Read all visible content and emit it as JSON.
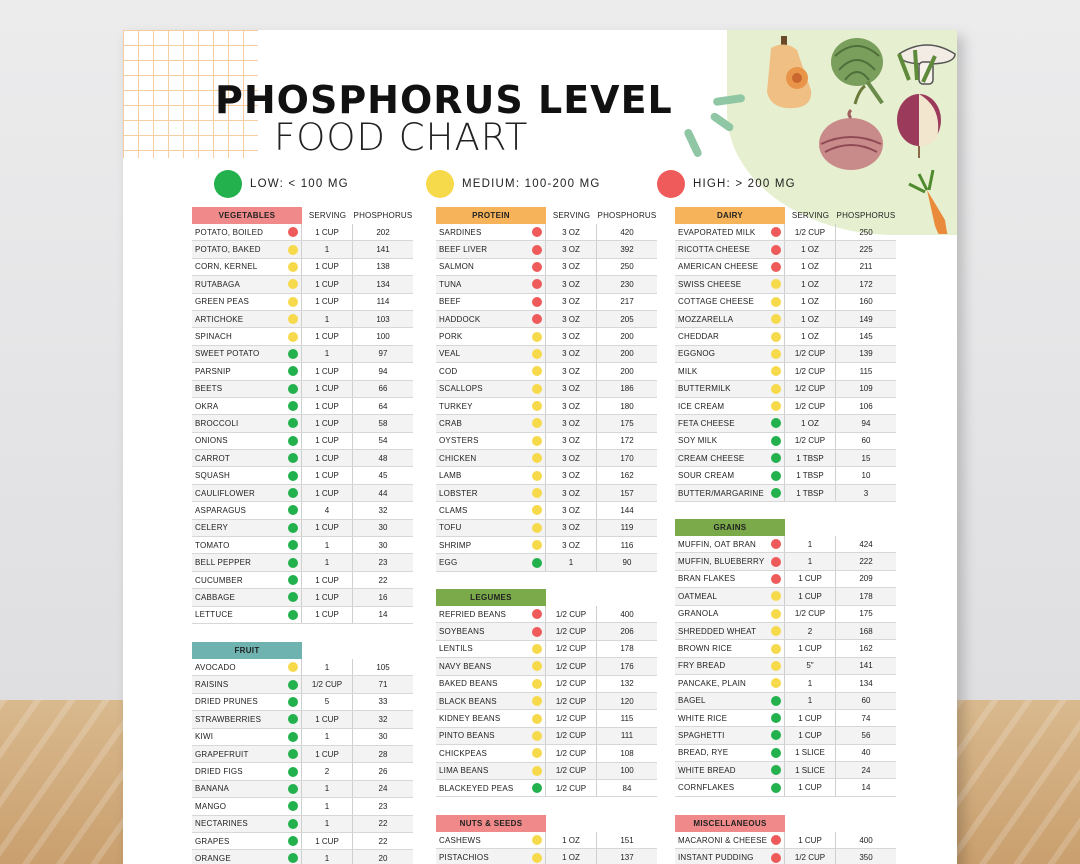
{
  "title": {
    "line1": "PHOSPHORUS LEVEL",
    "line2": "FOOD CHART"
  },
  "legend": [
    {
      "label": "LOW: < 100 MG",
      "color": "#22b14c"
    },
    {
      "label": "MEDIUM: 100-200 MG",
      "color": "#f7d94c"
    },
    {
      "label": "HIGH: > 200 MG",
      "color": "#ef5b5b"
    }
  ],
  "level_colors": {
    "low": "#22b14c",
    "medium": "#f7d94c",
    "high": "#ef5b5b"
  },
  "column_labels": {
    "serving": "SERVING",
    "phosphorus": "PHOSPHORUS"
  },
  "tables": {
    "vegetables": {
      "category": "VEGETABLES",
      "color": "#f08a8a",
      "rows": [
        {
          "food": "POTATO, BOILED",
          "level": "high",
          "serving": "1 CUP",
          "phosphorus": "202"
        },
        {
          "food": "POTATO, BAKED",
          "level": "medium",
          "serving": "1",
          "phosphorus": "141"
        },
        {
          "food": "CORN, KERNEL",
          "level": "medium",
          "serving": "1 CUP",
          "phosphorus": "138"
        },
        {
          "food": "RUTABAGA",
          "level": "medium",
          "serving": "1 CUP",
          "phosphorus": "134"
        },
        {
          "food": "GREEN PEAS",
          "level": "medium",
          "serving": "1 CUP",
          "phosphorus": "114"
        },
        {
          "food": "ARTICHOKE",
          "level": "medium",
          "serving": "1",
          "phosphorus": "103"
        },
        {
          "food": "SPINACH",
          "level": "medium",
          "serving": "1 CUP",
          "phosphorus": "100"
        },
        {
          "food": "SWEET POTATO",
          "level": "low",
          "serving": "1",
          "phosphorus": "97"
        },
        {
          "food": "PARSNIP",
          "level": "low",
          "serving": "1 CUP",
          "phosphorus": "94"
        },
        {
          "food": "BEETS",
          "level": "low",
          "serving": "1 CUP",
          "phosphorus": "66"
        },
        {
          "food": "OKRA",
          "level": "low",
          "serving": "1 CUP",
          "phosphorus": "64"
        },
        {
          "food": "BROCCOLI",
          "level": "low",
          "serving": "1 CUP",
          "phosphorus": "58"
        },
        {
          "food": "ONIONS",
          "level": "low",
          "serving": "1 CUP",
          "phosphorus": "54"
        },
        {
          "food": "CARROT",
          "level": "low",
          "serving": "1 CUP",
          "phosphorus": "48"
        },
        {
          "food": "SQUASH",
          "level": "low",
          "serving": "1 CUP",
          "phosphorus": "45"
        },
        {
          "food": "CAULIFLOWER",
          "level": "low",
          "serving": "1 CUP",
          "phosphorus": "44"
        },
        {
          "food": "ASPARAGUS",
          "level": "low",
          "serving": "4",
          "phosphorus": "32"
        },
        {
          "food": "CELERY",
          "level": "low",
          "serving": "1 CUP",
          "phosphorus": "30"
        },
        {
          "food": "TOMATO",
          "level": "low",
          "serving": "1",
          "phosphorus": "30"
        },
        {
          "food": "BELL PEPPER",
          "level": "low",
          "serving": "1",
          "phosphorus": "23"
        },
        {
          "food": "CUCUMBER",
          "level": "low",
          "serving": "1 CUP",
          "phosphorus": "22"
        },
        {
          "food": "CABBAGE",
          "level": "low",
          "serving": "1 CUP",
          "phosphorus": "16"
        },
        {
          "food": "LETTUCE",
          "level": "low",
          "serving": "1 CUP",
          "phosphorus": "14"
        }
      ]
    },
    "fruit": {
      "category": "FRUIT",
      "color": "#6fb3b0",
      "rows": [
        {
          "food": "AVOCADO",
          "level": "medium",
          "serving": "1",
          "phosphorus": "105"
        },
        {
          "food": "RAISINS",
          "level": "low",
          "serving": "1/2 CUP",
          "phosphorus": "71"
        },
        {
          "food": "DRIED PRUNES",
          "level": "low",
          "serving": "5",
          "phosphorus": "33"
        },
        {
          "food": "STRAWBERRIES",
          "level": "low",
          "serving": "1 CUP",
          "phosphorus": "32"
        },
        {
          "food": "KIWI",
          "level": "low",
          "serving": "1",
          "phosphorus": "30"
        },
        {
          "food": "GRAPEFRUIT",
          "level": "low",
          "serving": "1 CUP",
          "phosphorus": "28"
        },
        {
          "food": "DRIED FIGS",
          "level": "low",
          "serving": "2",
          "phosphorus": "26"
        },
        {
          "food": "BANANA",
          "level": "low",
          "serving": "1",
          "phosphorus": "24"
        },
        {
          "food": "MANGO",
          "level": "low",
          "serving": "1",
          "phosphorus": "23"
        },
        {
          "food": "NECTARINES",
          "level": "low",
          "serving": "1",
          "phosphorus": "22"
        },
        {
          "food": "GRAPES",
          "level": "low",
          "serving": "1 CUP",
          "phosphorus": "22"
        },
        {
          "food": "ORANGE",
          "level": "low",
          "serving": "1",
          "phosphorus": "20"
        }
      ]
    },
    "protein": {
      "category": "PROTEIN",
      "color": "#f6b35a",
      "rows": [
        {
          "food": "SARDINES",
          "level": "high",
          "serving": "3 OZ",
          "phosphorus": "420"
        },
        {
          "food": "BEEF LIVER",
          "level": "high",
          "serving": "3 OZ",
          "phosphorus": "392"
        },
        {
          "food": "SALMON",
          "level": "high",
          "serving": "3 OZ",
          "phosphorus": "250"
        },
        {
          "food": "TUNA",
          "level": "high",
          "serving": "3 OZ",
          "phosphorus": "230"
        },
        {
          "food": "BEEF",
          "level": "high",
          "serving": "3 OZ",
          "phosphorus": "217"
        },
        {
          "food": "HADDOCK",
          "level": "high",
          "serving": "3 OZ",
          "phosphorus": "205"
        },
        {
          "food": "PORK",
          "level": "medium",
          "serving": "3 OZ",
          "phosphorus": "200"
        },
        {
          "food": "VEAL",
          "level": "medium",
          "serving": "3 OZ",
          "phosphorus": "200"
        },
        {
          "food": "COD",
          "level": "medium",
          "serving": "3 OZ",
          "phosphorus": "200"
        },
        {
          "food": "SCALLOPS",
          "level": "medium",
          "serving": "3 OZ",
          "phosphorus": "186"
        },
        {
          "food": "TURKEY",
          "level": "medium",
          "serving": "3 OZ",
          "phosphorus": "180"
        },
        {
          "food": "CRAB",
          "level": "medium",
          "serving": "3 OZ",
          "phosphorus": "175"
        },
        {
          "food": "OYSTERS",
          "level": "medium",
          "serving": "3 OZ",
          "phosphorus": "172"
        },
        {
          "food": "CHICKEN",
          "level": "medium",
          "serving": "3 OZ",
          "phosphorus": "170"
        },
        {
          "food": "LAMB",
          "level": "medium",
          "serving": "3 OZ",
          "phosphorus": "162"
        },
        {
          "food": "LOBSTER",
          "level": "medium",
          "serving": "3 OZ",
          "phosphorus": "157"
        },
        {
          "food": "CLAMS",
          "level": "medium",
          "serving": "3 OZ",
          "phosphorus": "144"
        },
        {
          "food": "TOFU",
          "level": "medium",
          "serving": "3 OZ",
          "phosphorus": "119"
        },
        {
          "food": "SHRIMP",
          "level": "medium",
          "serving": "3 OZ",
          "phosphorus": "116"
        },
        {
          "food": "EGG",
          "level": "low",
          "serving": "1",
          "phosphorus": "90"
        }
      ]
    },
    "legumes": {
      "category": "LEGUMES",
      "color": "#7aaa4a",
      "rows": [
        {
          "food": "REFRIED BEANS",
          "level": "high",
          "serving": "1/2 CUP",
          "phosphorus": "400"
        },
        {
          "food": "SOYBEANS",
          "level": "high",
          "serving": "1/2 CUP",
          "phosphorus": "206"
        },
        {
          "food": "LENTILS",
          "level": "medium",
          "serving": "1/2 CUP",
          "phosphorus": "178"
        },
        {
          "food": "NAVY BEANS",
          "level": "medium",
          "serving": "1/2 CUP",
          "phosphorus": "176"
        },
        {
          "food": "BAKED BEANS",
          "level": "medium",
          "serving": "1/2 CUP",
          "phosphorus": "132"
        },
        {
          "food": "BLACK BEANS",
          "level": "medium",
          "serving": "1/2 CUP",
          "phosphorus": "120"
        },
        {
          "food": "KIDNEY BEANS",
          "level": "medium",
          "serving": "1/2 CUP",
          "phosphorus": "115"
        },
        {
          "food": "PINTO BEANS",
          "level": "medium",
          "serving": "1/2 CUP",
          "phosphorus": "111"
        },
        {
          "food": "CHICKPEAS",
          "level": "medium",
          "serving": "1/2 CUP",
          "phosphorus": "108"
        },
        {
          "food": "LIMA BEANS",
          "level": "medium",
          "serving": "1/2 CUP",
          "phosphorus": "100"
        },
        {
          "food": "BLACKEYED PEAS",
          "level": "low",
          "serving": "1/2 CUP",
          "phosphorus": "84"
        }
      ]
    },
    "nuts": {
      "category": "NUTS & SEEDS",
      "color": "#f08a8a",
      "rows": [
        {
          "food": "CASHEWS",
          "level": "medium",
          "serving": "1 OZ",
          "phosphorus": "151"
        },
        {
          "food": "PISTACHIOS",
          "level": "medium",
          "serving": "1 OZ",
          "phosphorus": "137"
        }
      ]
    },
    "dairy": {
      "category": "DAIRY",
      "color": "#f6b35a",
      "rows": [
        {
          "food": "EVAPORATED MILK",
          "level": "high",
          "serving": "1/2 CUP",
          "phosphorus": "250"
        },
        {
          "food": "RICOTTA CHEESE",
          "level": "high",
          "serving": "1 OZ",
          "phosphorus": "225"
        },
        {
          "food": "AMERICAN CHEESE",
          "level": "high",
          "serving": "1 OZ",
          "phosphorus": "211"
        },
        {
          "food": "SWISS CHEESE",
          "level": "medium",
          "serving": "1 OZ",
          "phosphorus": "172"
        },
        {
          "food": "COTTAGE CHEESE",
          "level": "medium",
          "serving": "1 OZ",
          "phosphorus": "160"
        },
        {
          "food": "MOZZARELLA",
          "level": "medium",
          "serving": "1 OZ",
          "phosphorus": "149"
        },
        {
          "food": "CHEDDAR",
          "level": "medium",
          "serving": "1 OZ",
          "phosphorus": "145"
        },
        {
          "food": "EGGNOG",
          "level": "medium",
          "serving": "1/2 CUP",
          "phosphorus": "139"
        },
        {
          "food": "MILK",
          "level": "medium",
          "serving": "1/2 CUP",
          "phosphorus": "115"
        },
        {
          "food": "BUTTERMILK",
          "level": "medium",
          "serving": "1/2 CUP",
          "phosphorus": "109"
        },
        {
          "food": "ICE CREAM",
          "level": "medium",
          "serving": "1/2 CUP",
          "phosphorus": "106"
        },
        {
          "food": "FETA CHEESE",
          "level": "low",
          "serving": "1 OZ",
          "phosphorus": "94"
        },
        {
          "food": "SOY MILK",
          "level": "low",
          "serving": "1/2 CUP",
          "phosphorus": "60"
        },
        {
          "food": "CREAM CHEESE",
          "level": "low",
          "serving": "1 TBSP",
          "phosphorus": "15"
        },
        {
          "food": "SOUR CREAM",
          "level": "low",
          "serving": "1 TBSP",
          "phosphorus": "10"
        },
        {
          "food": "BUTTER/MARGARINE",
          "level": "low",
          "serving": "1 TBSP",
          "phosphorus": "3"
        }
      ]
    },
    "grains": {
      "category": "GRAINS",
      "color": "#7aaa4a",
      "rows": [
        {
          "food": "MUFFIN, OAT BRAN",
          "level": "high",
          "serving": "1",
          "phosphorus": "424"
        },
        {
          "food": "MUFFIN, BLUEBERRY",
          "level": "high",
          "serving": "1",
          "phosphorus": "222"
        },
        {
          "food": "BRAN FLAKES",
          "level": "high",
          "serving": "1 CUP",
          "phosphorus": "209"
        },
        {
          "food": "OATMEAL",
          "level": "medium",
          "serving": "1 CUP",
          "phosphorus": "178"
        },
        {
          "food": "GRANOLA",
          "level": "medium",
          "serving": "1/2 CUP",
          "phosphorus": "175"
        },
        {
          "food": "SHREDDED WHEAT",
          "level": "medium",
          "serving": "2",
          "phosphorus": "168"
        },
        {
          "food": "BROWN RICE",
          "level": "medium",
          "serving": "1 CUP",
          "phosphorus": "162"
        },
        {
          "food": "FRY BREAD",
          "level": "medium",
          "serving": "5\"",
          "phosphorus": "141"
        },
        {
          "food": "PANCAKE, PLAIN",
          "level": "medium",
          "serving": "1",
          "phosphorus": "134"
        },
        {
          "food": "BAGEL",
          "level": "low",
          "serving": "1",
          "phosphorus": "60"
        },
        {
          "food": "WHITE RICE",
          "level": "low",
          "serving": "1 CUP",
          "phosphorus": "74"
        },
        {
          "food": "SPAGHETTI",
          "level": "low",
          "serving": "1 CUP",
          "phosphorus": "56"
        },
        {
          "food": "BREAD, RYE",
          "level": "low",
          "serving": "1 SLICE",
          "phosphorus": "40"
        },
        {
          "food": "WHITE BREAD",
          "level": "low",
          "serving": "1 SLICE",
          "phosphorus": "24"
        },
        {
          "food": "CORNFLAKES",
          "level": "low",
          "serving": "1 CUP",
          "phosphorus": "14"
        }
      ]
    },
    "misc": {
      "category": "MISCELLANEOUS",
      "color": "#f08a8a",
      "rows": [
        {
          "food": "MACARONI & CHEESE",
          "level": "high",
          "serving": "1 CUP",
          "phosphorus": "400"
        },
        {
          "food": "INSTANT PUDDING",
          "level": "high",
          "serving": "1/2 CUP",
          "phosphorus": "350"
        }
      ]
    }
  }
}
